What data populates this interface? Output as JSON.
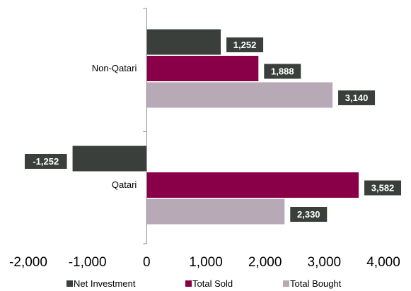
{
  "chart_data": {
    "type": "bar",
    "orientation": "horizontal",
    "categories": [
      "Non-Qatari",
      "Qatari"
    ],
    "series": [
      {
        "name": "Net Investment",
        "values": [
          1252,
          -1252
        ],
        "labels": [
          "1,252",
          "-1,252"
        ],
        "color": "#3a3f3c"
      },
      {
        "name": "Total Sold",
        "values": [
          1888,
          3582
        ],
        "labels": [
          "1,888",
          "3,582"
        ],
        "color": "#8a0048"
      },
      {
        "name": "Total Bought",
        "values": [
          3140,
          2330
        ],
        "labels": [
          "3,140",
          "2,330"
        ],
        "color": "#b7a9b5"
      }
    ],
    "xlim": [
      -2000,
      4000
    ],
    "xticks": [
      -2000,
      -1000,
      0,
      1000,
      2000,
      3000,
      4000
    ],
    "xtick_labels": [
      "-2,000",
      "-1,000",
      "0",
      "1,000",
      "2,000",
      "3,000",
      "4,000"
    ],
    "label_box_color": "#3a3f3c",
    "grid": false,
    "legend_position": "bottom",
    "title": "",
    "xlabel": "",
    "ylabel": ""
  }
}
